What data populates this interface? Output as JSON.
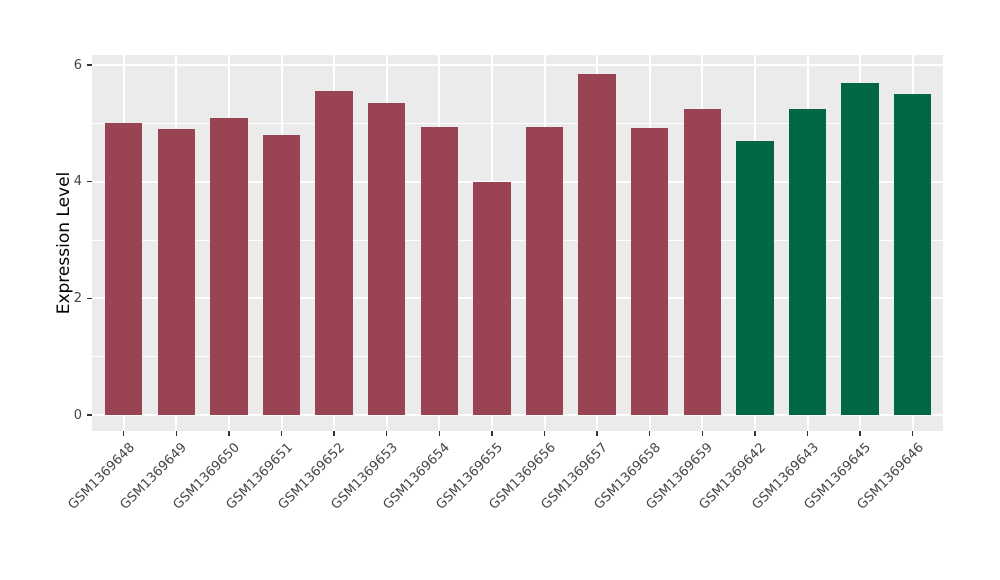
{
  "chart_data": {
    "type": "bar",
    "title": "",
    "xlabel": "",
    "ylabel": "Expression Level",
    "categories": [
      "GSM1369648",
      "GSM1369649",
      "GSM1369650",
      "GSM1369651",
      "GSM1369652",
      "GSM1369653",
      "GSM1369654",
      "GSM1369655",
      "GSM1369656",
      "GSM1369657",
      "GSM1369658",
      "GSM1369659",
      "GSM1369642",
      "GSM1369643",
      "GSM1369645",
      "GSM1369646"
    ],
    "values": [
      5.0,
      4.9,
      5.1,
      4.8,
      5.55,
      5.35,
      4.93,
      4.0,
      4.93,
      5.85,
      4.92,
      5.25,
      4.7,
      5.25,
      5.7,
      5.5
    ],
    "bar_colors": [
      "#9A4453",
      "#9A4453",
      "#9A4453",
      "#9A4453",
      "#9A4453",
      "#9A4453",
      "#9A4453",
      "#9A4453",
      "#9A4453",
      "#9A4453",
      "#9A4453",
      "#9A4453",
      "#016747",
      "#016747",
      "#016747",
      "#016747"
    ],
    "group_colors": {
      "maroon": "#9A4453",
      "green": "#016747"
    },
    "yticks": [
      0,
      2,
      4,
      6
    ],
    "ytick_labels": [
      "0",
      "2",
      "4",
      "6"
    ],
    "minor_yticks": [
      1,
      3,
      5
    ],
    "ylim": [
      0,
      6.17
    ],
    "x_tick_rotation_deg": 45,
    "grid": true,
    "legend_position": "none",
    "panel_background": "#EBEBEB",
    "grid_color": "#FFFFFF",
    "axis_text_color": "#454545",
    "axis_title_color": "#000000"
  }
}
